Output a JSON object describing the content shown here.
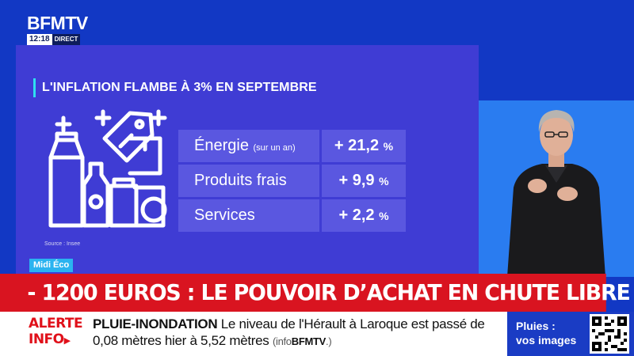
{
  "brand": {
    "logo": "BFMTV",
    "time": "12:18",
    "live_label": "DIRECT"
  },
  "panel": {
    "title": "L'INFLATION FLAMBE À 3% EN SEPTEMBRE",
    "source": "Source : Insee",
    "illustration_icon": "groceries-icon",
    "rows": [
      {
        "label": "Énergie",
        "sublabel": "(sur un an)",
        "value": "+ 21,2",
        "unit": "%"
      },
      {
        "label": "Produits frais",
        "sublabel": "",
        "value": "+ 9,9",
        "unit": "%"
      },
      {
        "label": "Services",
        "sublabel": "",
        "value": "+ 2,2",
        "unit": "%"
      }
    ]
  },
  "program_tag": "Midi Éco",
  "headline": "- 1200 EUROS : LE POUVOIR D’ACHAT EN CHUTE LIBRE",
  "ticker": {
    "badge_line1": "ALERTE",
    "badge_line2": "INFO",
    "topic": "PLUIE-INONDATION",
    "text": "Le niveau de l'Hérault à Laroque est passé de 0,08 mètres hier à 5,52 mètres",
    "credit_prefix": "(info",
    "credit_brand": "BFMTV",
    "credit_suffix": ".)"
  },
  "promo": {
    "line1": "Pluies :",
    "line2": "vos images",
    "qr_icon": "qr-code-icon"
  },
  "colors": {
    "background": "#1238c4",
    "panel": "#3f3cd4",
    "row": "#5a57e0",
    "accent": "#2ee0f0",
    "headline": "#d91420",
    "tag": "#2ab3f0",
    "alert": "#e0101a"
  }
}
